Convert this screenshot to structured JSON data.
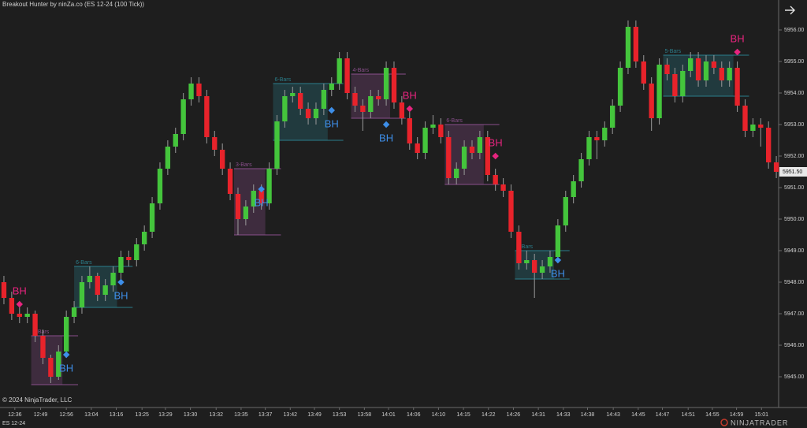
{
  "header": {
    "title": "Breakout Hunter by ninZa.co (ES 12-24 (100 Tick))"
  },
  "chart_data": {
    "type": "candlestick",
    "up_color": "#44c53c",
    "down_color": "#e8232b",
    "wick_color": "#9a9a9a",
    "xlim": [
      -0.3,
      99.8
    ],
    "ylim": [
      5944.05,
      5956.95
    ],
    "yticks": [
      {
        "value": 5945,
        "label": "5945.00"
      },
      {
        "value": 5946,
        "label": "5946.00"
      },
      {
        "value": 5947,
        "label": "5947.00"
      },
      {
        "value": 5948,
        "label": "5948.00"
      },
      {
        "value": 5949,
        "label": "5949.00"
      },
      {
        "value": 5950,
        "label": "5950.00"
      },
      {
        "value": 5951,
        "label": "5951.00"
      },
      {
        "value": 5952,
        "label": "5952.00"
      },
      {
        "value": 5953,
        "label": "5953.00"
      },
      {
        "value": 5954,
        "label": "5954.00"
      },
      {
        "value": 5955,
        "label": "5955.00"
      },
      {
        "value": 5956,
        "label": "5956.00"
      }
    ],
    "xticks": [
      {
        "value": 1.4,
        "label": "12:36"
      },
      {
        "value": 4.7,
        "label": "12:49"
      },
      {
        "value": 8,
        "label": "12:56"
      },
      {
        "value": 11.2,
        "label": "13:04"
      },
      {
        "value": 14.4,
        "label": "13:16"
      },
      {
        "value": 17.7,
        "label": "13:25"
      },
      {
        "value": 20.7,
        "label": "13:29"
      },
      {
        "value": 23.9,
        "label": "13:30"
      },
      {
        "value": 27.2,
        "label": "13:32"
      },
      {
        "value": 30.4,
        "label": "13:35"
      },
      {
        "value": 33.5,
        "label": "13:37"
      },
      {
        "value": 36.7,
        "label": "13:42"
      },
      {
        "value": 39.8,
        "label": "13:49"
      },
      {
        "value": 43,
        "label": "13:53"
      },
      {
        "value": 46.2,
        "label": "13:58"
      },
      {
        "value": 49.3,
        "label": "14:01"
      },
      {
        "value": 52.5,
        "label": "14:06"
      },
      {
        "value": 55.7,
        "label": "14:10"
      },
      {
        "value": 58.9,
        "label": "14:15"
      },
      {
        "value": 62.1,
        "label": "14:22"
      },
      {
        "value": 65.3,
        "label": "14:26"
      },
      {
        "value": 68.5,
        "label": "14:31"
      },
      {
        "value": 71.7,
        "label": "14:33"
      },
      {
        "value": 74.8,
        "label": "14:38"
      },
      {
        "value": 78.1,
        "label": "14:43"
      },
      {
        "value": 81.3,
        "label": "14:45"
      },
      {
        "value": 84.4,
        "label": "14:47"
      },
      {
        "value": 87.7,
        "label": "14:51"
      },
      {
        "value": 90.8,
        "label": "14:55"
      },
      {
        "value": 93.9,
        "label": "14:59"
      },
      {
        "value": 97.1,
        "label": "15:01"
      }
    ],
    "candles": [
      [
        5948.0,
        5948.2,
        5947.3,
        5947.5
      ],
      [
        5947.5,
        5947.7,
        5946.8,
        5947.0
      ],
      [
        5947.0,
        5947.2,
        5946.7,
        5946.9
      ],
      [
        5946.9,
        5947.2,
        5946.7,
        5947.0
      ],
      [
        5947.0,
        5947.1,
        5946.1,
        5946.3
      ],
      [
        5946.3,
        5946.5,
        5945.4,
        5945.6
      ],
      [
        5945.6,
        5945.7,
        5944.8,
        5945.0
      ],
      [
        5945.0,
        5946.0,
        5944.9,
        5945.8
      ],
      [
        5945.8,
        5947.1,
        5945.6,
        5946.9
      ],
      [
        5946.9,
        5947.4,
        5946.7,
        5947.2
      ],
      [
        5947.2,
        5948.2,
        5947.0,
        5948.0
      ],
      [
        5948.0,
        5948.5,
        5947.8,
        5948.2
      ],
      [
        5948.2,
        5948.3,
        5947.4,
        5947.6
      ],
      [
        5947.6,
        5948.1,
        5947.4,
        5947.9
      ],
      [
        5947.9,
        5948.5,
        5947.7,
        5948.3
      ],
      [
        5948.3,
        5949.0,
        5948.1,
        5948.8
      ],
      [
        5948.8,
        5949.0,
        5948.5,
        5948.7
      ],
      [
        5948.7,
        5949.4,
        5948.5,
        5949.2
      ],
      [
        5949.2,
        5949.8,
        5949.0,
        5949.6
      ],
      [
        5949.6,
        5950.7,
        5949.4,
        5950.5
      ],
      [
        5950.5,
        5951.8,
        5950.3,
        5951.6
      ],
      [
        5951.6,
        5952.5,
        5951.4,
        5952.3
      ],
      [
        5952.3,
        5952.9,
        5952.1,
        5952.7
      ],
      [
        5952.7,
        5954.0,
        5952.5,
        5953.8
      ],
      [
        5953.8,
        5954.5,
        5953.6,
        5954.3
      ],
      [
        5954.3,
        5954.5,
        5953.7,
        5953.9
      ],
      [
        5953.9,
        5954.1,
        5952.4,
        5952.6
      ],
      [
        5952.6,
        5952.8,
        5952.0,
        5952.2
      ],
      [
        5952.2,
        5952.4,
        5951.4,
        5951.6
      ],
      [
        5951.6,
        5951.8,
        5950.6,
        5950.8
      ],
      [
        5950.8,
        5951.0,
        5949.5,
        5950.0
      ],
      [
        5950.0,
        5950.6,
        5949.8,
        5950.4
      ],
      [
        5950.4,
        5951.1,
        5950.2,
        5950.9
      ],
      [
        5950.9,
        5951.1,
        5950.3,
        5950.5
      ],
      [
        5950.5,
        5951.8,
        5950.3,
        5951.6
      ],
      [
        5951.6,
        5953.3,
        5951.4,
        5953.1
      ],
      [
        5953.1,
        5954.1,
        5952.9,
        5953.9
      ],
      [
        5953.9,
        5954.2,
        5953.7,
        5954.0
      ],
      [
        5954.0,
        5954.2,
        5953.3,
        5953.5
      ],
      [
        5953.5,
        5953.7,
        5953.0,
        5953.2
      ],
      [
        5953.2,
        5953.7,
        5953.0,
        5953.5
      ],
      [
        5953.5,
        5954.3,
        5953.3,
        5954.1
      ],
      [
        5954.1,
        5954.5,
        5953.9,
        5954.3
      ],
      [
        5954.3,
        5955.3,
        5954.1,
        5955.1
      ],
      [
        5955.1,
        5955.3,
        5953.8,
        5954.0
      ],
      [
        5954.0,
        5954.2,
        5953.4,
        5953.6
      ],
      [
        5953.6,
        5953.8,
        5952.8,
        5953.4
      ],
      [
        5953.4,
        5954.1,
        5953.2,
        5953.9
      ],
      [
        5953.9,
        5954.1,
        5953.6,
        5953.8
      ],
      [
        5953.8,
        5955.0,
        5953.6,
        5954.8
      ],
      [
        5954.8,
        5955.0,
        5953.5,
        5953.7
      ],
      [
        5953.7,
        5953.9,
        5953.0,
        5953.2
      ],
      [
        5953.2,
        5953.4,
        5952.2,
        5952.4
      ],
      [
        5952.4,
        5952.6,
        5951.9,
        5952.1
      ],
      [
        5952.1,
        5953.1,
        5951.9,
        5952.9
      ],
      [
        5952.9,
        5953.3,
        5952.7,
        5953.0
      ],
      [
        5953.0,
        5953.2,
        5952.4,
        5952.6
      ],
      [
        5952.6,
        5952.8,
        5951.1,
        5951.3
      ],
      [
        5951.3,
        5951.8,
        5951.1,
        5951.6
      ],
      [
        5951.6,
        5952.5,
        5951.4,
        5952.3
      ],
      [
        5952.3,
        5952.5,
        5951.9,
        5952.1
      ],
      [
        5952.1,
        5952.8,
        5951.9,
        5952.6
      ],
      [
        5952.6,
        5952.8,
        5951.2,
        5951.4
      ],
      [
        5951.4,
        5951.6,
        5950.9,
        5951.1
      ],
      [
        5951.1,
        5951.3,
        5950.7,
        5950.9
      ],
      [
        5950.9,
        5951.1,
        5949.4,
        5949.6
      ],
      [
        5949.6,
        5949.8,
        5948.4,
        5948.6
      ],
      [
        5948.6,
        5949.0,
        5948.4,
        5948.7
      ],
      [
        5948.7,
        5948.9,
        5947.5,
        5948.3
      ],
      [
        5948.3,
        5948.7,
        5948.1,
        5948.5
      ],
      [
        5948.5,
        5949.0,
        5948.3,
        5948.8
      ],
      [
        5948.8,
        5950.0,
        5948.6,
        5949.8
      ],
      [
        5949.8,
        5950.9,
        5949.6,
        5950.7
      ],
      [
        5950.7,
        5951.4,
        5950.5,
        5951.2
      ],
      [
        5951.2,
        5952.1,
        5951.0,
        5951.9
      ],
      [
        5951.9,
        5952.8,
        5951.7,
        5952.6
      ],
      [
        5952.6,
        5952.8,
        5951.9,
        5952.5
      ],
      [
        5952.5,
        5953.1,
        5952.3,
        5952.9
      ],
      [
        5952.9,
        5953.8,
        5952.7,
        5953.6
      ],
      [
        5953.6,
        5955.0,
        5953.4,
        5954.8
      ],
      [
        5954.8,
        5956.3,
        5954.6,
        5956.1
      ],
      [
        5956.1,
        5956.3,
        5954.8,
        5955.0
      ],
      [
        5955.0,
        5955.2,
        5954.1,
        5954.3
      ],
      [
        5954.3,
        5954.5,
        5952.8,
        5953.2
      ],
      [
        5953.2,
        5955.1,
        5953.0,
        5954.9
      ],
      [
        5954.9,
        5955.1,
        5954.4,
        5954.6
      ],
      [
        5954.6,
        5954.8,
        5953.7,
        5953.9
      ],
      [
        5953.9,
        5954.9,
        5953.7,
        5954.7
      ],
      [
        5954.7,
        5955.3,
        5954.5,
        5955.1
      ],
      [
        5955.1,
        5955.3,
        5954.2,
        5954.4
      ],
      [
        5954.4,
        5955.2,
        5954.2,
        5955.0
      ],
      [
        5955.0,
        5955.2,
        5954.6,
        5954.8
      ],
      [
        5954.8,
        5955.0,
        5954.2,
        5954.4
      ],
      [
        5954.4,
        5955.0,
        5954.2,
        5954.8
      ],
      [
        5954.8,
        5955.0,
        5953.4,
        5953.6
      ],
      [
        5953.6,
        5953.8,
        5952.6,
        5952.8
      ],
      [
        5952.8,
        5953.2,
        5952.6,
        5953.0
      ],
      [
        5953.0,
        5953.2,
        5952.3,
        5952.9
      ],
      [
        5952.9,
        5953.1,
        5951.6,
        5951.8
      ],
      [
        5951.8,
        5952.0,
        5951.3,
        5951.5
      ]
    ],
    "boxes": [
      {
        "label": "4-Bars",
        "x0": 4,
        "x1": 7,
        "top": 5946.3,
        "bottom": 5944.75,
        "color": "#8a4f8c"
      },
      {
        "label": "6-Bars",
        "x0": 9.5,
        "x1": 14,
        "top": 5948.5,
        "bottom": 5947.2,
        "color": "#2b7f8c"
      },
      {
        "label": "3-Bars",
        "x0": 30,
        "x1": 33,
        "top": 5951.6,
        "bottom": 5949.5,
        "color": "#8a4f8c"
      },
      {
        "label": "6-Bars",
        "x0": 35,
        "x1": 41,
        "top": 5954.3,
        "bottom": 5952.5,
        "color": "#2b7f8c"
      },
      {
        "label": "4-Bars",
        "x0": 45,
        "x1": 49,
        "top": 5954.6,
        "bottom": 5953.2,
        "color": "#8a4f8c"
      },
      {
        "label": "6-Bars",
        "x0": 57,
        "x1": 61,
        "top": 5953.0,
        "bottom": 5951.1,
        "color": "#8a4f8c"
      },
      {
        "label": "3-Bars",
        "x0": 66,
        "x1": 70,
        "top": 5949.0,
        "bottom": 5948.1,
        "color": "#2b7f8c"
      },
      {
        "label": "5-Bars",
        "x0": 85,
        "x1": 93,
        "top": 5955.2,
        "bottom": 5953.9,
        "color": "#2b7f8c"
      }
    ],
    "signals": [
      {
        "label": "BH",
        "x": 2,
        "y": 5947.3,
        "color": "#e8247f",
        "side": "above"
      },
      {
        "label": "BH",
        "x": 8,
        "y": 5945.7,
        "color": "#3d8ee8",
        "side": "below"
      },
      {
        "label": "BH",
        "x": 15,
        "y": 5948.0,
        "color": "#3d8ee8",
        "side": "below"
      },
      {
        "label": "BH",
        "x": 33,
        "y": 5950.95,
        "color": "#3d8ee8",
        "side": "below"
      },
      {
        "label": "BH",
        "x": 42,
        "y": 5953.45,
        "color": "#3d8ee8",
        "side": "below"
      },
      {
        "label": "BH",
        "x": 49,
        "y": 5953.0,
        "color": "#3d8ee8",
        "side": "below"
      },
      {
        "label": "BH",
        "x": 52,
        "y": 5953.5,
        "color": "#e8247f",
        "side": "above"
      },
      {
        "label": "BH",
        "x": 63,
        "y": 5952.0,
        "color": "#e8247f",
        "side": "above"
      },
      {
        "label": "BH",
        "x": 71,
        "y": 5948.7,
        "color": "#3d8ee8",
        "side": "below"
      },
      {
        "label": "BH",
        "x": 94,
        "y": 5955.3,
        "color": "#e8247f",
        "side": "above"
      }
    ],
    "last_price": {
      "value": 5951.5,
      "label": "5951.50"
    }
  },
  "footer": {
    "copyright": "© 2024 NinjaTrader, LLC",
    "instrument": "ES 12-24",
    "brand": "NINJATRADER"
  }
}
